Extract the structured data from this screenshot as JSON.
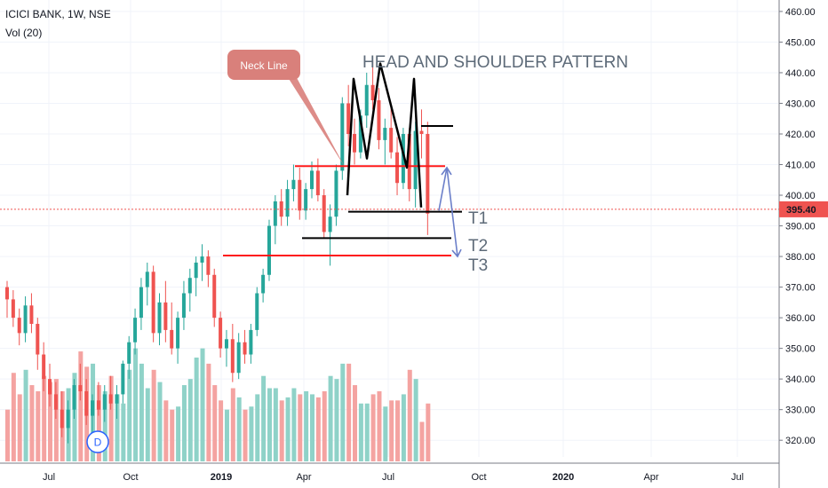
{
  "header": {
    "title": "ICICI BANK, 1W, NSE",
    "volume_label": "Vol (20)"
  },
  "badge": {
    "label": "D"
  },
  "colors": {
    "up": "#26a69a",
    "down": "#ef5350",
    "up_vol": "#8fd2c8",
    "down_vol": "#f4a3a1",
    "neck": "#ff1a1a",
    "pattern": "#000000",
    "arrow": "#6b7fc9",
    "price_line": "#ef5350",
    "callout": "#d9807b"
  },
  "chart_data": {
    "type": "candlestick",
    "title": "ICICI BANK, 1W, NSE",
    "ylim": [
      316,
      462
    ],
    "y_ticks": [
      "460.00",
      "450.00",
      "440.00",
      "430.00",
      "420.00",
      "410.00",
      "400.00",
      "390.00",
      "380.00",
      "370.00",
      "360.00",
      "350.00",
      "340.00",
      "330.00",
      "320.00"
    ],
    "x_ticks": [
      "Jul",
      "Oct",
      "2019",
      "Apr",
      "Jul",
      "Oct",
      "2020",
      "Apr",
      "Jul"
    ],
    "current_price": "395.40",
    "candles": [
      [
        370,
        372,
        360,
        366
      ],
      [
        366,
        369,
        357,
        360
      ],
      [
        360,
        363,
        351,
        355
      ],
      [
        355,
        367,
        352,
        364
      ],
      [
        364,
        368,
        355,
        358
      ],
      [
        358,
        360,
        343,
        348
      ],
      [
        348,
        352,
        336,
        340
      ],
      [
        340,
        345,
        331,
        335
      ],
      [
        335,
        339,
        327,
        330
      ],
      [
        330,
        336,
        321,
        324
      ],
      [
        324,
        333,
        319,
        330
      ],
      [
        330,
        340,
        327,
        338
      ],
      [
        338,
        345,
        333,
        336
      ],
      [
        336,
        340,
        325,
        328
      ],
      [
        328,
        335,
        322,
        333
      ],
      [
        333,
        339,
        328,
        330
      ],
      [
        330,
        338,
        326,
        335
      ],
      [
        335,
        341,
        330,
        332
      ],
      [
        332,
        338,
        327,
        335
      ],
      [
        335,
        346,
        332,
        345
      ],
      [
        345,
        354,
        340,
        352
      ],
      [
        352,
        363,
        348,
        360
      ],
      [
        360,
        373,
        356,
        370
      ],
      [
        370,
        378,
        364,
        375
      ],
      [
        375,
        377,
        352,
        355
      ],
      [
        355,
        368,
        351,
        365
      ],
      [
        365,
        372,
        352,
        356
      ],
      [
        356,
        365,
        348,
        350
      ],
      [
        350,
        362,
        345,
        360
      ],
      [
        360,
        372,
        356,
        368
      ],
      [
        368,
        376,
        362,
        373
      ],
      [
        373,
        380,
        367,
        378
      ],
      [
        378,
        384,
        372,
        380
      ],
      [
        380,
        382,
        370,
        374
      ],
      [
        374,
        376,
        357,
        360
      ],
      [
        360,
        362,
        347,
        350
      ],
      [
        350,
        356,
        344,
        353
      ],
      [
        353,
        358,
        339,
        342
      ],
      [
        342,
        355,
        340,
        352
      ],
      [
        352,
        356,
        345,
        348
      ],
      [
        348,
        358,
        345,
        356
      ],
      [
        356,
        370,
        354,
        368
      ],
      [
        368,
        376,
        365,
        374
      ],
      [
        374,
        392,
        372,
        390
      ],
      [
        390,
        400,
        384,
        398
      ],
      [
        398,
        402,
        390,
        393
      ],
      [
        393,
        405,
        390,
        402
      ],
      [
        402,
        410,
        398,
        405
      ],
      [
        405,
        409,
        392,
        395
      ],
      [
        395,
        404,
        392,
        402
      ],
      [
        402,
        411,
        399,
        408
      ],
      [
        408,
        412,
        398,
        400
      ],
      [
        400,
        402,
        386,
        388
      ],
      [
        388,
        397,
        377,
        393
      ],
      [
        393,
        410,
        390,
        408
      ],
      [
        408,
        432,
        405,
        430
      ],
      [
        430,
        436,
        416,
        420
      ],
      [
        420,
        425,
        410,
        414
      ],
      [
        414,
        428,
        412,
        426
      ],
      [
        426,
        440,
        422,
        436
      ],
      [
        436,
        444,
        428,
        431
      ],
      [
        431,
        435,
        415,
        418
      ],
      [
        418,
        425,
        410,
        422
      ],
      [
        422,
        430,
        412,
        414
      ],
      [
        414,
        419,
        400,
        404
      ],
      [
        404,
        422,
        402,
        420
      ],
      [
        420,
        422,
        398,
        402
      ],
      [
        402,
        424,
        396,
        421
      ],
      [
        421,
        428,
        412,
        420
      ],
      [
        420,
        424,
        387,
        394
      ]
    ],
    "volumes": [
      330,
      342,
      335,
      343,
      338,
      336,
      341,
      339,
      340,
      336,
      337,
      342,
      349,
      344,
      345,
      338,
      336,
      341,
      335,
      332,
      343,
      350,
      345,
      337,
      343,
      339,
      333,
      330,
      331,
      338,
      340,
      347,
      350,
      345,
      338,
      333,
      330,
      337,
      334,
      330,
      331,
      335,
      341,
      337,
      337,
      333,
      334,
      337,
      335,
      336,
      335,
      334,
      336,
      341,
      340,
      345,
      345,
      338,
      332,
      332,
      335,
      336,
      331,
      333,
      333,
      335,
      343,
      340,
      326,
      332
    ],
    "annotations": {
      "pattern_title": "HEAD AND SHOULDER PATTERN",
      "callout": "Neck Line",
      "targets": [
        "T1",
        "T2",
        "T3"
      ]
    }
  }
}
